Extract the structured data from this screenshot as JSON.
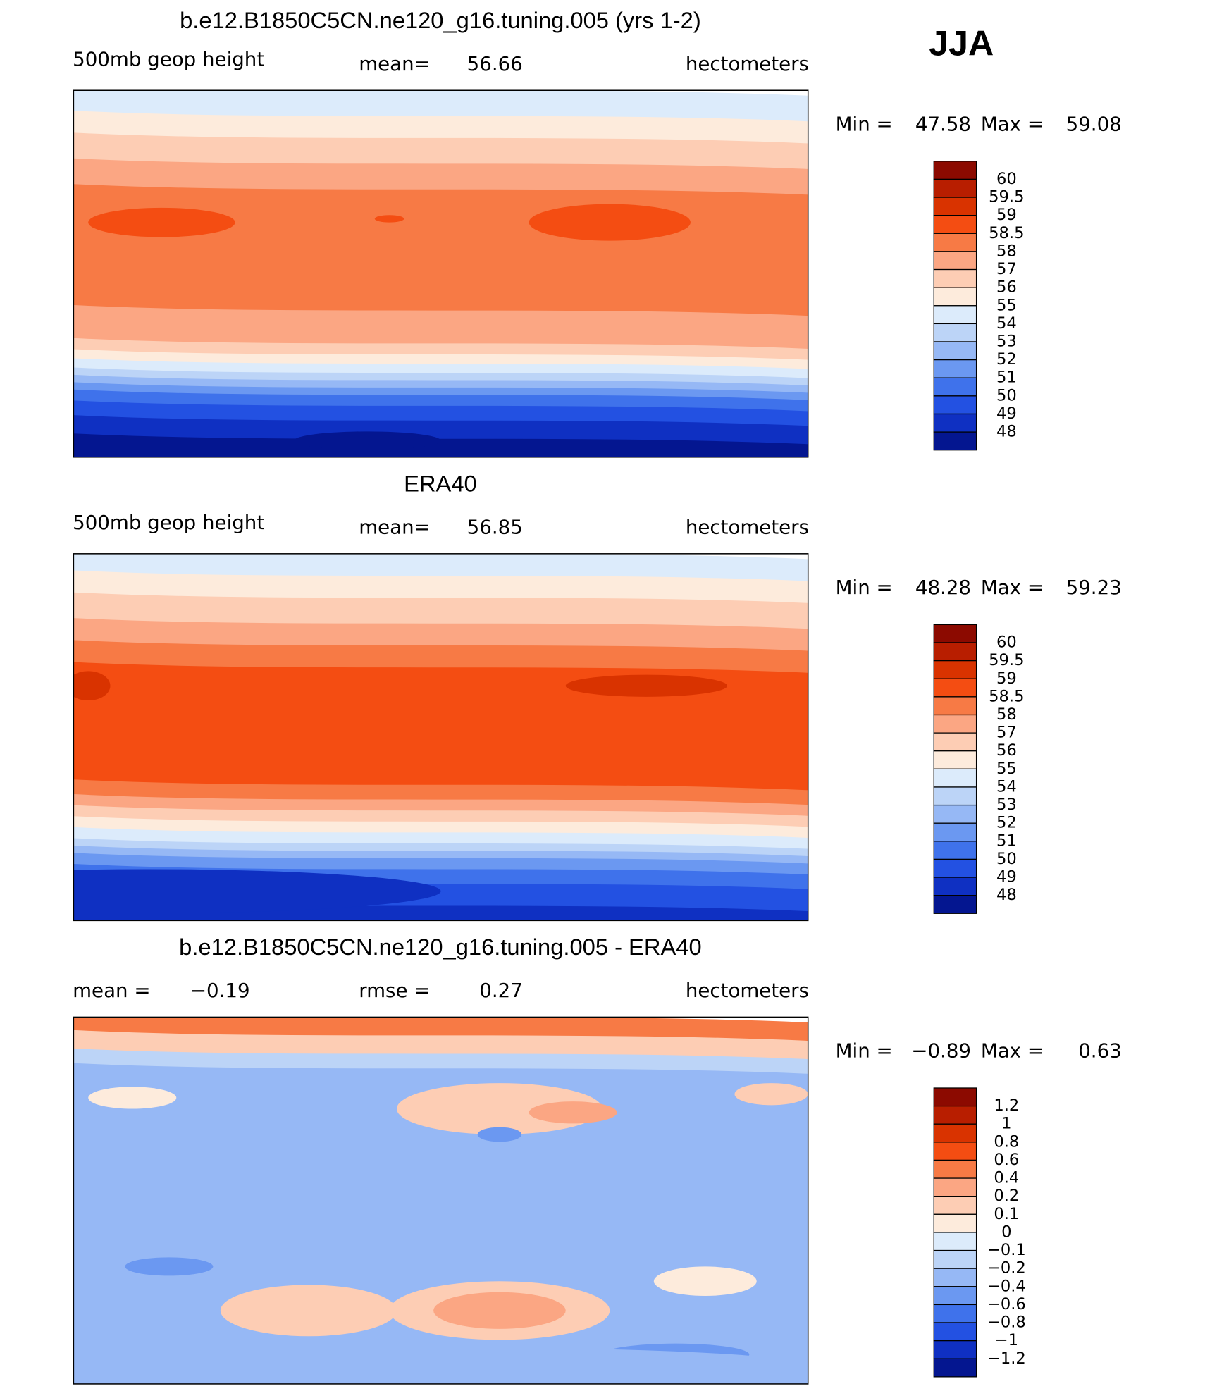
{
  "label": "JJA",
  "chart_data": [
    {
      "type": "contour-map",
      "title": "b.e12.B1850C5CN.ne120_g16.tuning.005 (yrs 1-2)",
      "left": {
        "label": "500mb geop height"
      },
      "center": {
        "label": "mean=",
        "value": 56.66
      },
      "units": "hectometers",
      "min_label": "Min =",
      "min": 47.58,
      "max_label": "Max =",
      "max": 59.08,
      "levels": [
        60,
        59.5,
        59,
        58.5,
        58,
        57,
        56,
        55,
        54,
        53,
        52,
        51,
        50,
        49,
        48
      ],
      "colors": [
        "#8c0a00",
        "#b81e00",
        "#d93300",
        "#f44d12",
        "#f77a45",
        "#fba683",
        "#fdcdb4",
        "#fdebdc",
        "#dcebfb",
        "#bcd4f7",
        "#96b8f5",
        "#6b98f1",
        "#3f72eb",
        "#2351e2",
        "#0f30c2",
        "#041690"
      ]
    },
    {
      "type": "contour-map",
      "title": "ERA40",
      "left": {
        "label": "500mb geop height"
      },
      "center": {
        "label": "mean=",
        "value": 56.85
      },
      "units": "hectometers",
      "min_label": "Min =",
      "min": 48.28,
      "max_label": "Max =",
      "max": 59.23,
      "levels": [
        60,
        59.5,
        59,
        58.5,
        58,
        57,
        56,
        55,
        54,
        53,
        52,
        51,
        50,
        49,
        48
      ],
      "colors": [
        "#8c0a00",
        "#b81e00",
        "#d93300",
        "#f44d12",
        "#f77a45",
        "#fba683",
        "#fdcdb4",
        "#fdebdc",
        "#dcebfb",
        "#bcd4f7",
        "#96b8f5",
        "#6b98f1",
        "#3f72eb",
        "#2351e2",
        "#0f30c2",
        "#041690"
      ]
    },
    {
      "type": "contour-map",
      "title": "b.e12.B1850C5CN.ne120_g16.tuning.005 - ERA40",
      "left": {
        "label": "mean =",
        "value": {
          "value": -0.19,
          "label": "−0.19"
        }
      },
      "center": {
        "label": "rmse =",
        "value": 0.27
      },
      "units": "hectometers",
      "min_label": "Min =",
      "min": {
        "value": -0.89,
        "label": "−0.89"
      },
      "max_label": "Max =",
      "max": 0.63,
      "levels": [
        1.2,
        1,
        0.8,
        0.6,
        0.4,
        0.2,
        0.1,
        0,
        {
          "value": -0.1,
          "label": "−0.1"
        },
        {
          "value": -0.2,
          "label": "−0.2"
        },
        {
          "value": -0.4,
          "label": "−0.4"
        },
        {
          "value": -0.6,
          "label": "−0.6"
        },
        {
          "value": -0.8,
          "label": "−0.8"
        },
        {
          "value": -1,
          "label": "−1"
        },
        {
          "value": -1.2,
          "label": "−1.2"
        }
      ],
      "colors": [
        "#8c0a00",
        "#b81e00",
        "#d93300",
        "#f44d12",
        "#f77a45",
        "#fba683",
        "#fdcdb4",
        "#fdebdc",
        "#dcebfb",
        "#bcd4f7",
        "#96b8f5",
        "#6b98f1",
        "#3f72eb",
        "#2351e2",
        "#0f30c2",
        "#041690"
      ]
    }
  ]
}
